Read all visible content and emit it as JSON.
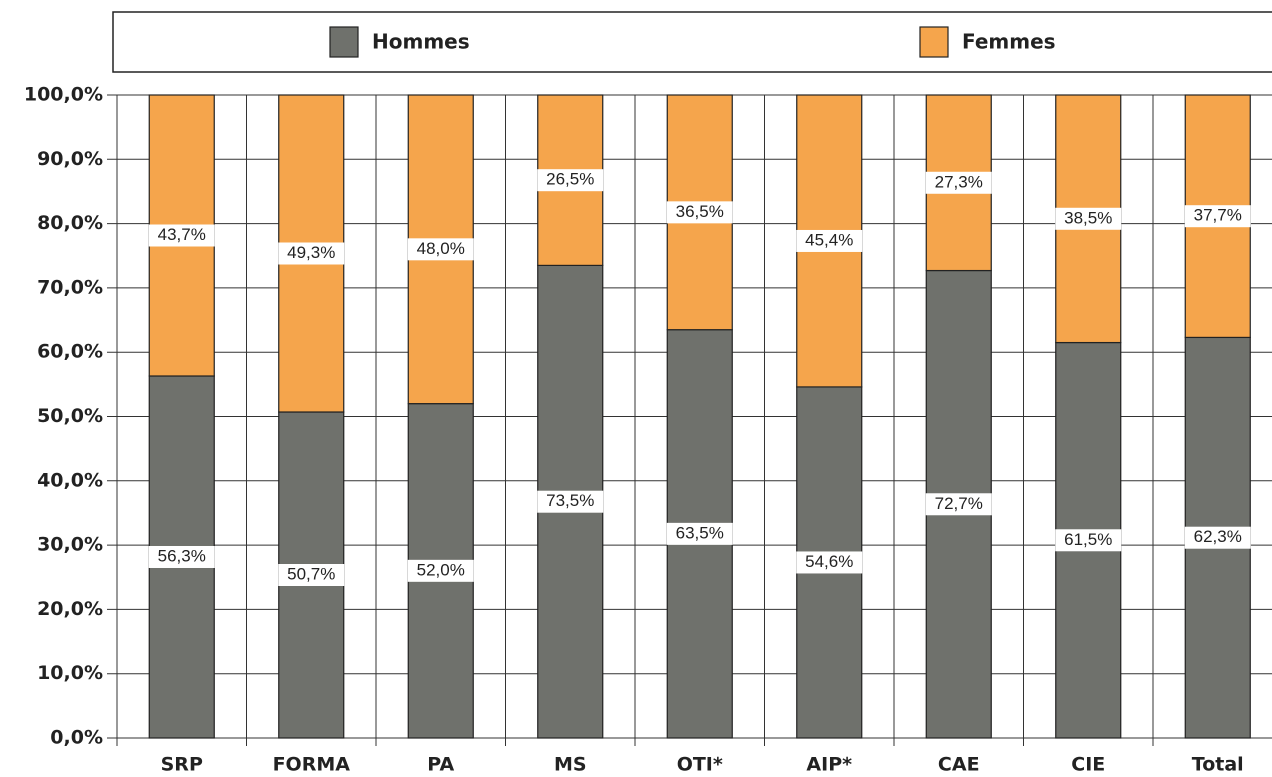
{
  "chart_data": {
    "type": "bar",
    "stacked": true,
    "categories": [
      "SRP",
      "FORMA",
      "PA",
      "MS",
      "OTI*",
      "AIP*",
      "CAE",
      "CIE",
      "Total"
    ],
    "series": [
      {
        "name": "Hommes",
        "color": "#6f716c",
        "values": [
          56.3,
          50.7,
          52.0,
          73.5,
          63.5,
          54.6,
          72.7,
          61.5,
          62.3
        ],
        "value_labels": [
          "56,3%",
          "50,7%",
          "52,0%",
          "73,5%",
          "63,5%",
          "54,6%",
          "72,7%",
          "61,5%",
          "62,3%"
        ]
      },
      {
        "name": "Femmes",
        "color": "#f5a54c",
        "values": [
          43.7,
          49.3,
          48.0,
          26.5,
          36.5,
          45.4,
          27.3,
          38.5,
          37.7
        ],
        "value_labels": [
          "43,7%",
          "49,3%",
          "48,0%",
          "26,5%",
          "36,5%",
          "45,4%",
          "27,3%",
          "38,5%",
          "37,7%"
        ]
      }
    ],
    "ylim": [
      0,
      100
    ],
    "yticks": [
      {
        "value": 0,
        "label": "0,0%"
      },
      {
        "value": 10,
        "label": "10,0%"
      },
      {
        "value": 20,
        "label": "20,0%"
      },
      {
        "value": 30,
        "label": "30,0%"
      },
      {
        "value": 40,
        "label": "40,0%"
      },
      {
        "value": 50,
        "label": "50,0%"
      },
      {
        "value": 60,
        "label": "60,0%"
      },
      {
        "value": 70,
        "label": "70,0%"
      },
      {
        "value": 80,
        "label": "80,0%"
      },
      {
        "value": 90,
        "label": "90,0%"
      },
      {
        "value": 100,
        "label": "100,0%"
      }
    ],
    "grid": true
  }
}
